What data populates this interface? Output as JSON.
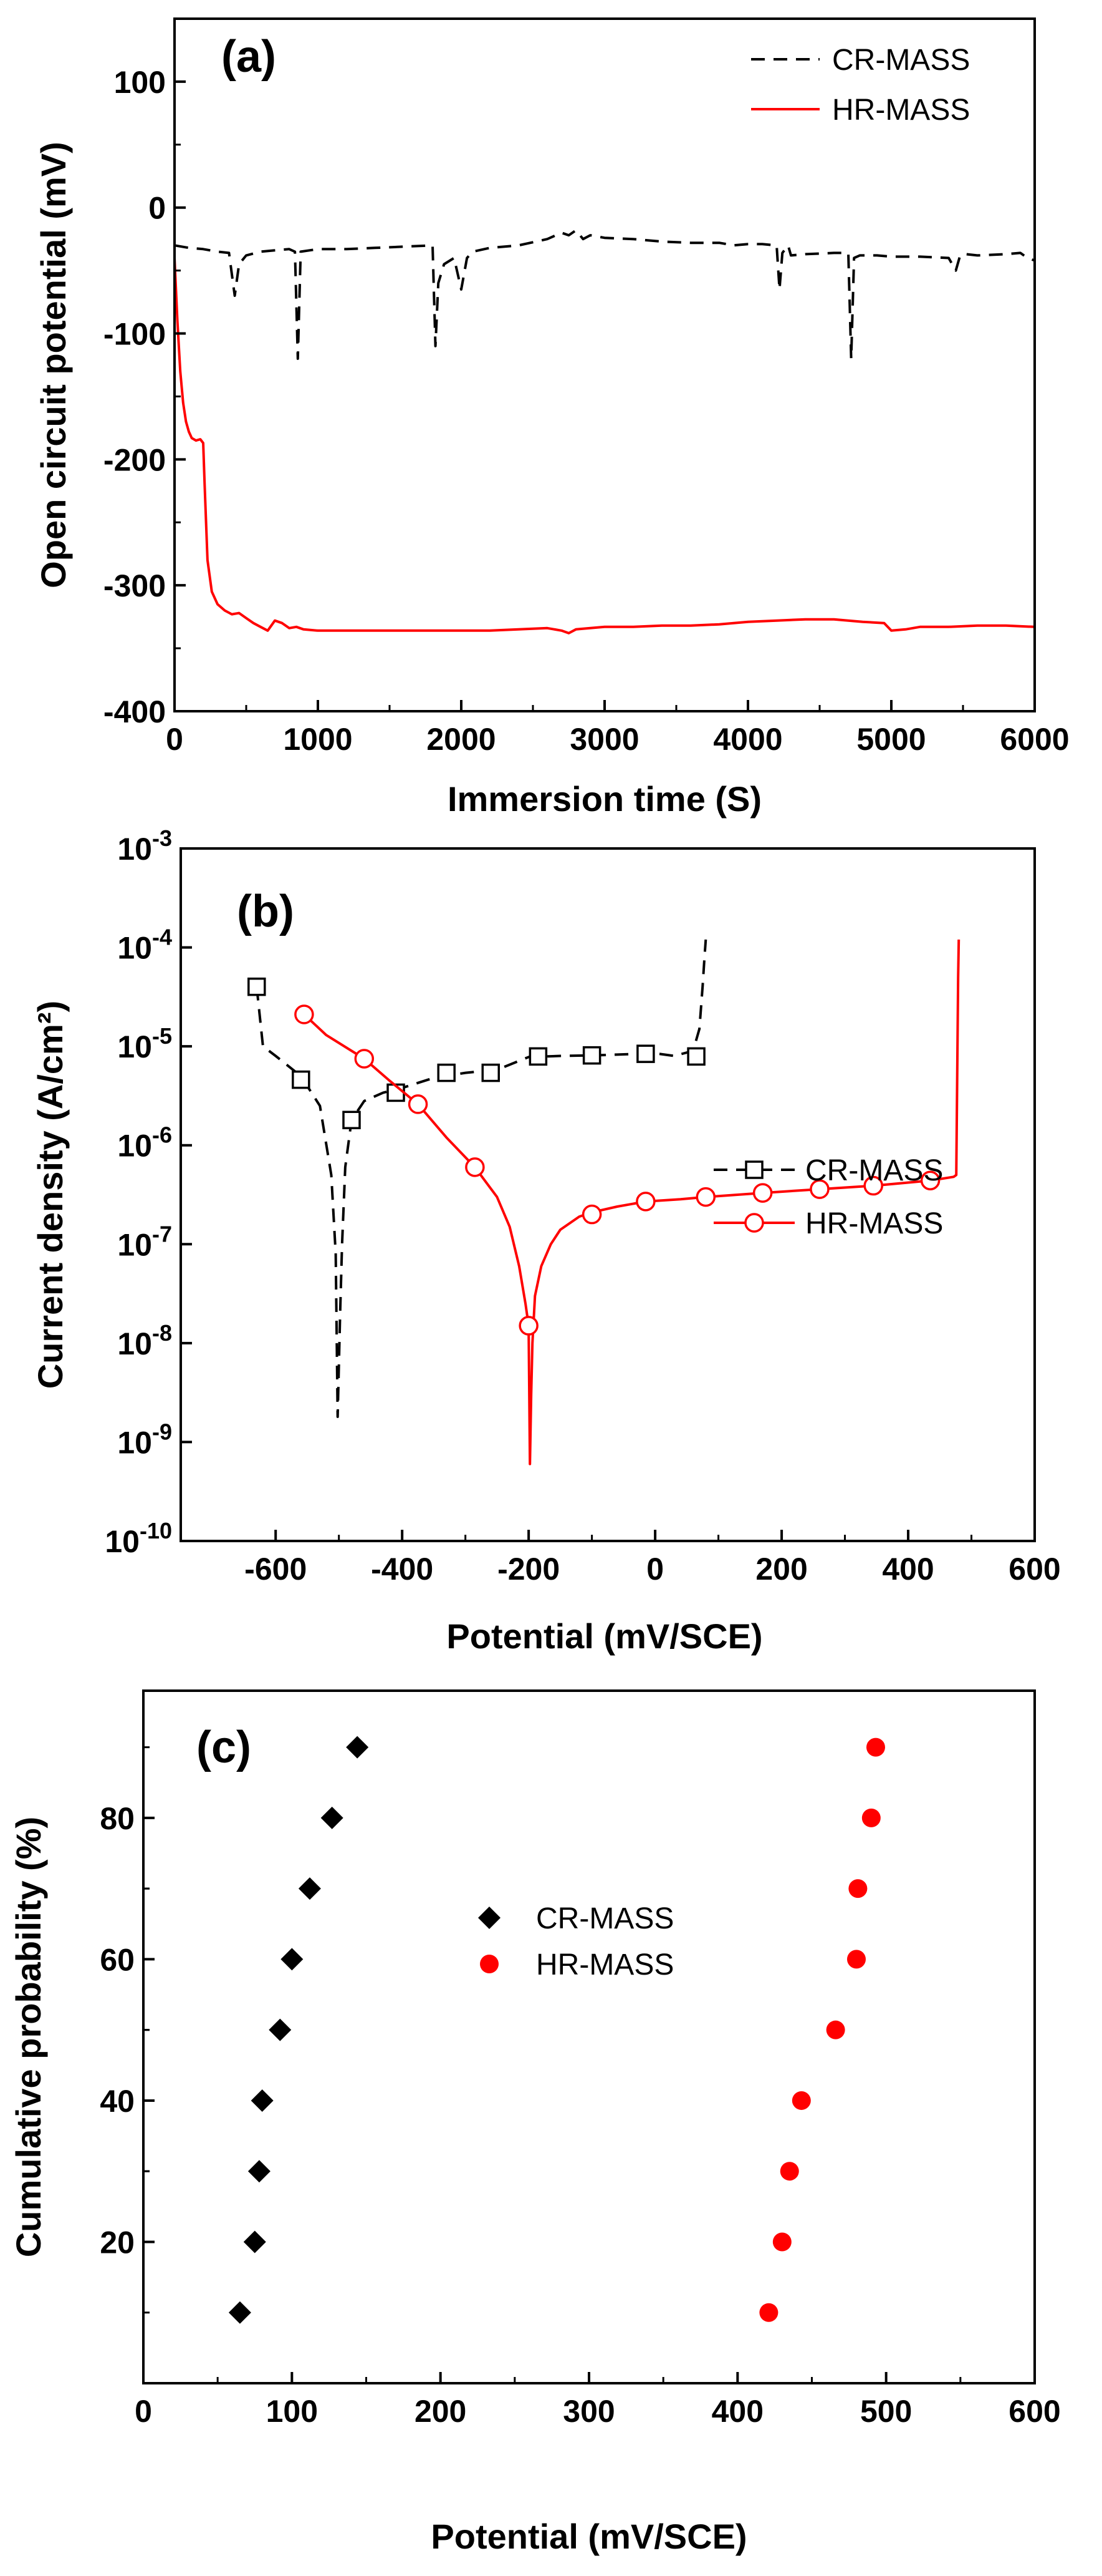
{
  "colors": {
    "cr": "#000000",
    "hr": "#ff0000",
    "axis": "#000000",
    "background": "#ffffff"
  },
  "chart_data": [
    {
      "panel": "(a)",
      "type": "line",
      "xlabel": "Immersion time (S)",
      "ylabel": "Open circuit potential (mV)",
      "xlim": [
        0,
        6000
      ],
      "ylim": [
        -400,
        150
      ],
      "x_ticks": [
        0,
        1000,
        2000,
        3000,
        4000,
        5000,
        6000
      ],
      "y_ticks": [
        -400,
        -300,
        -200,
        -100,
        0,
        100
      ],
      "grid": false,
      "legend_position": "top-right",
      "series": [
        {
          "name": "CR-MASS",
          "style": "dashed",
          "color": "#000000",
          "x": [
            0,
            100,
            200,
            300,
            380,
            420,
            450,
            500,
            600,
            700,
            800,
            840,
            860,
            880,
            1000,
            1200,
            1400,
            1600,
            1800,
            1820,
            1840,
            1880,
            1950,
            2000,
            2040,
            2080,
            2200,
            2400,
            2600,
            2700,
            2750,
            2800,
            2850,
            2900,
            3000,
            3200,
            3400,
            3600,
            3800,
            3900,
            4000,
            4100,
            4200,
            4220,
            4240,
            4280,
            4300,
            4400,
            4600,
            4700,
            4720,
            4740,
            4780,
            4900,
            5000,
            5200,
            5400,
            5450,
            5480,
            5520,
            5600,
            5800,
            5900,
            5950,
            6000
          ],
          "y": [
            -30,
            -32,
            -33,
            -35,
            -36,
            -70,
            -45,
            -38,
            -35,
            -34,
            -33,
            -35,
            -120,
            -35,
            -33,
            -33,
            -32,
            -31,
            -30,
            -110,
            -60,
            -45,
            -40,
            -65,
            -40,
            -35,
            -32,
            -30,
            -25,
            -20,
            -22,
            -18,
            -25,
            -22,
            -24,
            -25,
            -27,
            -28,
            -28,
            -30,
            -29,
            -29,
            -30,
            -65,
            -36,
            -30,
            -38,
            -37,
            -36,
            -36,
            -120,
            -40,
            -38,
            -38,
            -39,
            -39,
            -40,
            -50,
            -38,
            -37,
            -38,
            -37,
            -36,
            -40,
            -42
          ]
        },
        {
          "name": "HR-MASS",
          "style": "solid",
          "color": "#ff0000",
          "x": [
            0,
            20,
            40,
            60,
            80,
            100,
            120,
            150,
            180,
            200,
            210,
            230,
            260,
            300,
            350,
            400,
            450,
            500,
            550,
            600,
            650,
            700,
            750,
            800,
            850,
            900,
            1000,
            1200,
            1400,
            1600,
            1800,
            2000,
            2200,
            2400,
            2600,
            2700,
            2750,
            2800,
            2900,
            3000,
            3200,
            3400,
            3600,
            3800,
            4000,
            4200,
            4400,
            4600,
            4800,
            4950,
            5000,
            5100,
            5200,
            5400,
            5600,
            5800,
            6000
          ],
          "y": [
            -40,
            -90,
            -130,
            -155,
            -170,
            -178,
            -183,
            -185,
            -184,
            -187,
            -220,
            -280,
            -305,
            -315,
            -320,
            -323,
            -322,
            -326,
            -330,
            -333,
            -336,
            -328,
            -330,
            -334,
            -333,
            -335,
            -336,
            -336,
            -336,
            -336,
            -336,
            -336,
            -336,
            -335,
            -334,
            -336,
            -338,
            -335,
            -334,
            -333,
            -333,
            -332,
            -332,
            -331,
            -329,
            -328,
            -327,
            -327,
            -329,
            -330,
            -336,
            -335,
            -333,
            -333,
            -332,
            -332,
            -333
          ]
        }
      ]
    },
    {
      "panel": "(b)",
      "type": "line",
      "xlabel": "Potential (mV/SCE)",
      "ylabel": "Current density (A/cm²)",
      "xlim": [
        -750,
        600
      ],
      "ylim": [
        1e-10,
        0.001
      ],
      "y_scale": "log",
      "x_ticks": [
        -600,
        -400,
        -200,
        0,
        200,
        400,
        600
      ],
      "y_ticks": [
        1e-10,
        1e-09,
        1e-08,
        1e-07,
        1e-06,
        1e-05,
        0.0001,
        0.001
      ],
      "y_tick_labels": [
        "10-10",
        "10-9",
        "10-8",
        "10-7",
        "10-6",
        "10-5",
        "10-4",
        "10-3"
      ],
      "grid": false,
      "legend_position": "lower-right",
      "series": [
        {
          "name": "CR-MASS",
          "style": "dashed",
          "marker": "open-square",
          "color": "#000000",
          "x": [
            -630,
            -620,
            -600,
            -560,
            -530,
            -512,
            -505,
            -502,
            -498,
            -495,
            -490,
            -480,
            -460,
            -430,
            -400,
            -350,
            -300,
            -250,
            -200,
            -150,
            -100,
            -50,
            0,
            30,
            60,
            70,
            75,
            78,
            80
          ],
          "y": [
            4e-05,
            1e-05,
            8e-06,
            5e-06,
            2.5e-06,
            5e-07,
            8e-08,
            1.8e-09,
            2e-08,
            1e-07,
            6e-07,
            1.8e-06,
            2.8e-06,
            3.4e-06,
            3.8e-06,
            4.8e-06,
            5.4e-06,
            5.8e-06,
            7.8e-06,
            8e-06,
            8.1e-06,
            8.3e-06,
            8.5e-06,
            8e-06,
            9e-06,
            1.5e-05,
            4e-05,
            8e-05,
            0.00012
          ],
          "markers_x": [
            -630,
            -560,
            -480,
            -410,
            -330,
            -260,
            -185,
            -100,
            -15,
            65
          ],
          "markers_y": [
            4e-05,
            4.6e-06,
            1.8e-06,
            3.4e-06,
            5.4e-06,
            5.4e-06,
            7.9e-06,
            8.1e-06,
            8.4e-06,
            7.9e-06
          ]
        },
        {
          "name": "HR-MASS",
          "style": "solid",
          "marker": "open-circle",
          "color": "#ff0000",
          "x": [
            -555,
            -520,
            -460,
            -420,
            -375,
            -330,
            -285,
            -250,
            -230,
            -215,
            -205,
            -200,
            -198,
            -196,
            -194,
            -190,
            -180,
            -165,
            -150,
            -120,
            -100,
            -60,
            -15,
            40,
            80,
            170,
            260,
            345,
            435,
            472,
            476,
            479,
            480
          ],
          "y": [
            2.1e-05,
            1.3e-05,
            7.5e-06,
            4.5e-06,
            2.6e-06,
            1.2e-06,
            6e-07,
            3e-07,
            1.5e-07,
            6e-08,
            2.5e-08,
            1.5e-08,
            6e-10,
            3e-09,
            1e-08,
            3e-08,
            6e-08,
            1e-07,
            1.4e-07,
            1.9e-07,
            2.1e-07,
            2.4e-07,
            2.7e-07,
            2.85e-07,
            3e-07,
            3.3e-07,
            3.6e-07,
            3.9e-07,
            4.4e-07,
            4.8e-07,
            5e-07,
            5e-05,
            0.00012
          ],
          "markers_x": [
            -555,
            -460,
            -375,
            -285,
            -200,
            -100,
            -15,
            80,
            170,
            260,
            345,
            435
          ],
          "markers_y": [
            2.1e-05,
            7.5e-06,
            2.6e-06,
            6e-07,
            1.5e-08,
            2e-07,
            2.7e-07,
            3e-07,
            3.3e-07,
            3.6e-07,
            3.9e-07,
            4.4e-07
          ]
        }
      ]
    },
    {
      "panel": "(c)",
      "type": "scatter",
      "xlabel": "Potential (mV/SCE)",
      "ylabel": "Cumulative probability (%)",
      "xlim": [
        0,
        600
      ],
      "ylim": [
        0,
        98
      ],
      "x_ticks": [
        0,
        100,
        200,
        300,
        400,
        500,
        600
      ],
      "y_ticks": [
        20,
        40,
        60,
        80
      ],
      "grid": false,
      "legend_position": "upper-center",
      "series": [
        {
          "name": "CR-MASS",
          "marker": "filled-diamond",
          "color": "#000000",
          "x": [
            65,
            75,
            78,
            80,
            92,
            100,
            112,
            127,
            144
          ],
          "y": [
            10,
            20,
            30,
            40,
            50,
            60,
            70,
            80,
            90
          ]
        },
        {
          "name": "HR-MASS",
          "marker": "filled-circle",
          "color": "#ff0000",
          "x": [
            421,
            430,
            435,
            443,
            466,
            480,
            481,
            490,
            493
          ],
          "y": [
            10,
            20,
            30,
            40,
            50,
            60,
            70,
            80,
            90
          ]
        }
      ]
    }
  ]
}
